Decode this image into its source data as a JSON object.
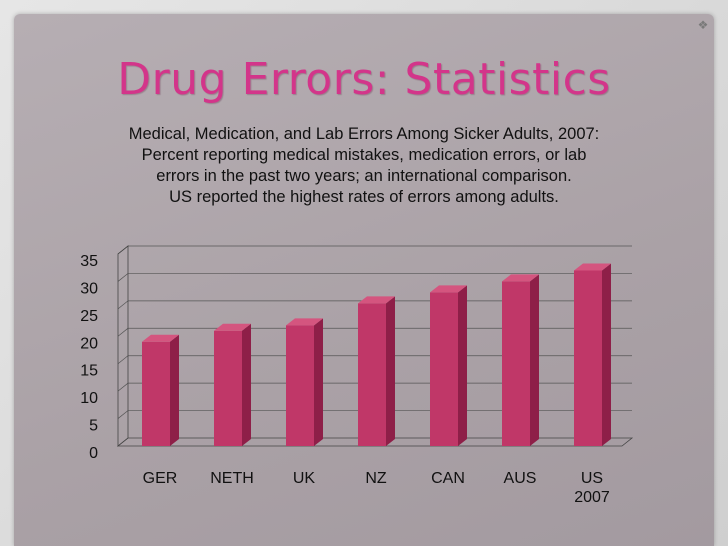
{
  "slide_title": "Drug Errors: Statistics",
  "subtitle_lines": [
    "Medical, Medication, and Lab Errors Among Sicker Adults, 2007:",
    "Percent reporting medical mistakes, medication errors, or lab",
    "errors in the past two years; an international comparison.",
    "US reported the highest rates of errors among adults."
  ],
  "colors": {
    "title": "#d3358a",
    "bar_front": "#c03768",
    "bar_side": "#8e1f48",
    "bar_top": "#d4557f",
    "slide_bg": "#aca3a8"
  },
  "chart_data": {
    "type": "bar",
    "categories": [
      "GER",
      "NETH",
      "UK",
      "NZ",
      "CAN",
      "AUS",
      "US 2007"
    ],
    "values": [
      19,
      21,
      22,
      26,
      28,
      30,
      32
    ],
    "ylim": [
      0,
      35
    ],
    "y_ticks": [
      "0",
      "5",
      "10",
      "15",
      "20",
      "25",
      "30",
      "35"
    ],
    "grid": true,
    "legend": "none",
    "style": "3d-column"
  }
}
